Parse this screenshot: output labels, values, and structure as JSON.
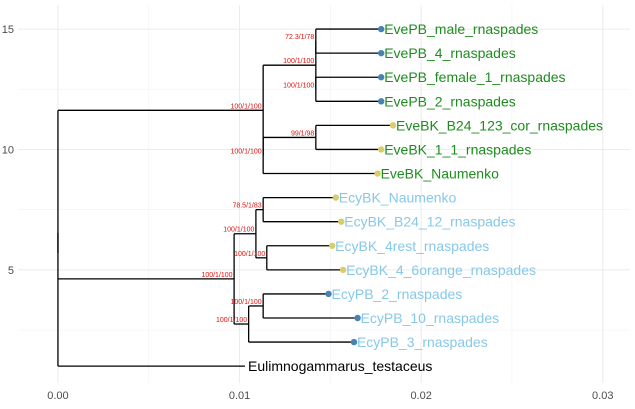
{
  "chart_data": {
    "type": "tree",
    "xlim": [
      -0.0022,
      0.0315
    ],
    "ylim": [
      0.3,
      16
    ],
    "x_ticks": [
      {
        "value": 0.0,
        "label": "0.00"
      },
      {
        "value": 0.01,
        "label": "0.01"
      },
      {
        "value": 0.02,
        "label": "0.02"
      },
      {
        "value": 0.03,
        "label": "0.03"
      }
    ],
    "y_ticks": [
      {
        "value": 5,
        "label": "5"
      },
      {
        "value": 10,
        "label": "10"
      },
      {
        "value": 15,
        "label": "15"
      }
    ],
    "colors": {
      "green_label": "#1e8c1e",
      "blue_label": "#87c8e8",
      "black_label": "#000000",
      "blue_point": "#4682b4",
      "yellow_point": "#d8cc6c"
    },
    "tips": [
      {
        "label": "EvePB_male_rnaspades",
        "x": 0.0178,
        "y": 15,
        "label_color": "green_label",
        "point_color": "blue_point"
      },
      {
        "label": "EvePB_4_rnaspades",
        "x": 0.0178,
        "y": 14,
        "label_color": "green_label",
        "point_color": "blue_point"
      },
      {
        "label": "EvePB_female_1_rnaspades",
        "x": 0.0178,
        "y": 13,
        "label_color": "green_label",
        "point_color": "blue_point"
      },
      {
        "label": "EvePB_2_rnaspades",
        "x": 0.0178,
        "y": 12,
        "label_color": "green_label",
        "point_color": "blue_point"
      },
      {
        "label": "EveBK_B24_123_cor_rnaspades",
        "x": 0.01845,
        "y": 11,
        "label_color": "green_label",
        "point_color": "yellow_point"
      },
      {
        "label": "EveBK_1_1_rnaspades",
        "x": 0.0178,
        "y": 10,
        "label_color": "green_label",
        "point_color": "yellow_point"
      },
      {
        "label": "EveBK_Naumenko",
        "x": 0.0176,
        "y": 9,
        "label_color": "green_label",
        "point_color": "yellow_point"
      },
      {
        "label": "EcyBK_Naumenko",
        "x": 0.0153,
        "y": 8,
        "label_color": "blue_label",
        "point_color": "yellow_point"
      },
      {
        "label": "EcyBK_B24_12_rnaspades",
        "x": 0.0156,
        "y": 7,
        "label_color": "blue_label",
        "point_color": "yellow_point"
      },
      {
        "label": "EcyBK_4rest_rnaspades",
        "x": 0.0151,
        "y": 6,
        "label_color": "blue_label",
        "point_color": "yellow_point"
      },
      {
        "label": "EcyBK_4_6orange_rnaspades",
        "x": 0.0157,
        "y": 5,
        "label_color": "blue_label",
        "point_color": "yellow_point"
      },
      {
        "label": "EcyPB_2_rnaspades",
        "x": 0.0149,
        "y": 4,
        "label_color": "blue_label",
        "point_color": "blue_point"
      },
      {
        "label": "EcyPB_10_rnaspades",
        "x": 0.0165,
        "y": 3,
        "label_color": "blue_label",
        "point_color": "blue_point"
      },
      {
        "label": "EcyPB_3_rnaspades",
        "x": 0.0163,
        "y": 2,
        "label_color": "blue_label",
        "point_color": "blue_point"
      },
      {
        "label": "Eulimnogammarus_testaceus",
        "x": 0.0103,
        "y": 1,
        "label_color": "black_label",
        "point_color": null
      }
    ],
    "nodes": [
      {
        "id": "root",
        "x": 0.0,
        "y": 5.7,
        "children": [
          "eve",
          "ecy_all",
          "t15"
        ],
        "support": null
      },
      {
        "id": "eve",
        "x": 0.0113,
        "y": 12.0,
        "children": [
          "n5",
          "n6"
        ],
        "support": "100/1/100"
      },
      {
        "id": "n5",
        "x": 0.0142,
        "y": 13.75,
        "children": [
          "n1",
          "n2"
        ],
        "support": "100/1/100"
      },
      {
        "id": "n1",
        "x": 0.0142,
        "y": 14.5,
        "children": [
          "t1",
          "t2"
        ],
        "support": "72.3/1/78"
      },
      {
        "id": "n2",
        "x": 0.0142,
        "y": 12.5,
        "children": [
          "t3",
          "t4"
        ],
        "support": "100/1/100"
      },
      {
        "id": "n6",
        "x": 0.0113,
        "y": 9.75,
        "children": [
          "n3",
          "t7"
        ],
        "support": "100/1/100"
      },
      {
        "id": "n3",
        "x": 0.0142,
        "y": 10.5,
        "children": [
          "t5",
          "t6"
        ],
        "support": "99/1/98"
      },
      {
        "id": "ecy_all",
        "x": 0.0097,
        "y": 4.625,
        "children": [
          "ecyBK",
          "ecyPB"
        ],
        "support": "100/1/100"
      },
      {
        "id": "ecyBK",
        "x": 0.0109,
        "y": 6.25,
        "children": [
          "n7",
          "n8"
        ],
        "support": "100/1/100"
      },
      {
        "id": "n7",
        "x": 0.0113,
        "y": 7.5,
        "children": [
          "t8",
          "t9"
        ],
        "support": "78.5/1/83"
      },
      {
        "id": "n8",
        "x": 0.0115,
        "y": 5.5,
        "children": [
          "t10",
          "t11"
        ],
        "support": "100/1/100"
      },
      {
        "id": "ecyPB",
        "x": 0.0105,
        "y": 3.0,
        "children": [
          "n9",
          "t14"
        ],
        "support": "100/1/100"
      },
      {
        "id": "n9",
        "x": 0.0113,
        "y": 3.5,
        "children": [
          "t12",
          "t13"
        ],
        "support": "100/1/100"
      }
    ],
    "tip_ids": [
      "t1",
      "t2",
      "t3",
      "t4",
      "t5",
      "t6",
      "t7",
      "t8",
      "t9",
      "t10",
      "t11",
      "t12",
      "t13",
      "t14",
      "t15"
    ]
  }
}
